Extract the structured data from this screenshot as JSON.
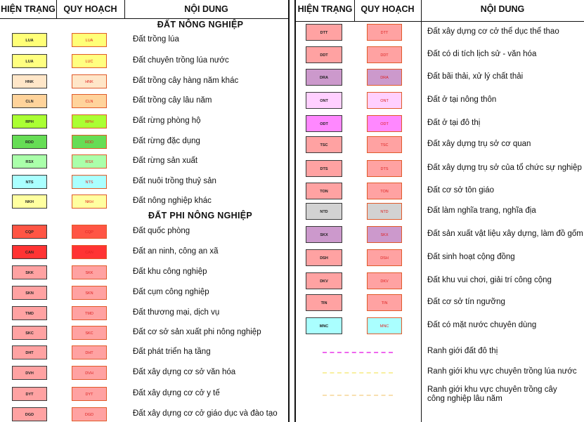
{
  "headers": {
    "current": "HIỆN TRẠNG",
    "planned": "QUY HOẠCH",
    "content": "NỘI DUNG"
  },
  "sections": {
    "agri": "ĐẤT NÔNG NGHIỆP",
    "nonagri": "ĐẤT PHI NÔNG NGHIỆP"
  },
  "left_rows": [
    {
      "code_cur": "LUA",
      "code_plan": "LUA",
      "label": "Đất trồng lúa",
      "color": "#ffff77"
    },
    {
      "code_cur": "LUA",
      "code_plan": "LUC",
      "label": "Đất chuyên trồng lúa nước",
      "color": "#ffff80"
    },
    {
      "code_cur": "HNK",
      "code_plan": "HNK",
      "label": "Đất trồng cây hàng năm khác",
      "color": "#ffe6c8"
    },
    {
      "code_cur": "CLN",
      "code_plan": "CLN",
      "label": "Đất trồng cây lâu năm",
      "color": "#ffd39b"
    },
    {
      "code_cur": "RPH",
      "code_plan": "RPH",
      "label": "Đất rừng phòng hộ",
      "color": "#aaff33"
    },
    {
      "code_cur": "RDD",
      "code_plan": "RDD",
      "label": "Đất rừng đặc dụng",
      "color": "#66dd55"
    },
    {
      "code_cur": "RSX",
      "code_plan": "RSX",
      "label": "Đất rừng sản xuất",
      "color": "#aaffaa"
    },
    {
      "code_cur": "NTS",
      "code_plan": "NTS",
      "label": "Đất nuôi trồng thuỷ sản",
      "color": "#aaffff"
    },
    {
      "code_cur": "NKH",
      "code_plan": "NKH",
      "label": "Đất nông nghiệp khác",
      "color": "#ffffa0"
    },
    {
      "code_cur": "CQP",
      "code_plan": "CQP",
      "label": "Đất quốc phòng",
      "color": "#ff5544"
    },
    {
      "code_cur": "CAN",
      "code_plan": "CAN",
      "label": "Đất an ninh, công an xã",
      "color": "#ff3333"
    },
    {
      "code_cur": "SKK",
      "code_plan": "SKK",
      "label": "Đất khu công nghiệp",
      "color": "#ffa2a2"
    },
    {
      "code_cur": "SKN",
      "code_plan": "SKN",
      "label": "Đất cụm công nghiệp",
      "color": "#ffa2a2"
    },
    {
      "code_cur": "TMD",
      "code_plan": "TMD",
      "label": "Đất thương mại, dịch vụ",
      "color": "#ffa2a2"
    },
    {
      "code_cur": "SKC",
      "code_plan": "SKC",
      "label": "Đất cơ sở sản xuất phi nông nghiệp",
      "color": "#ffa2a2"
    },
    {
      "code_cur": "DHT",
      "code_plan": "DHT",
      "label": "Đất phát triển hạ tầng",
      "color": "#ffa2a2"
    },
    {
      "code_cur": "DVH",
      "code_plan": "DVH",
      "label": "Đất xây dựng cơ sở văn hóa",
      "color": "#ffa2a2"
    },
    {
      "code_cur": "DYT",
      "code_plan": "DYT",
      "label": "Đất xây dựng cơ cở y tế",
      "color": "#ffa2a2"
    },
    {
      "code_cur": "DGD",
      "code_plan": "DGD",
      "label": "Đất xây dựng cơ cở giáo dục và đào tạo",
      "color": "#ffa2a2"
    }
  ],
  "right_rows": [
    {
      "code_cur": "DTT",
      "code_plan": "DTT",
      "label": "Đất xây dựng cơ cở thể dục thể thao",
      "color": "#ffa2a2"
    },
    {
      "code_cur": "DDT",
      "code_plan": "DDT",
      "label": "Đất có di tích lịch sử - văn hóa",
      "color": "#ffa2a2"
    },
    {
      "code_cur": "DRA",
      "code_plan": "DRA",
      "label": "Đất bãi thải, xử lý chất thải",
      "color": "#cc99cc"
    },
    {
      "code_cur": "ONT",
      "code_plan": "ONT",
      "label": "Đất ở tại nông thôn",
      "color": "#ffd0ff"
    },
    {
      "code_cur": "ODT",
      "code_plan": "ODT",
      "label": "Đất ở tại đô thị",
      "color": "#ff88ff"
    },
    {
      "code_cur": "TSC",
      "code_plan": "TSC",
      "label": "Đất xây dựng trụ sở cơ quan",
      "color": "#ffa2a2"
    },
    {
      "code_cur": "DTS",
      "code_plan": "DTS",
      "label": "Đất xây dựng trụ sở của tổ chức sự nghiệp",
      "color": "#ffa2a2"
    },
    {
      "code_cur": "TON",
      "code_plan": "TON",
      "label": "Đất cơ sở tôn giáo",
      "color": "#ffa2a2"
    },
    {
      "code_cur": "NTD",
      "code_plan": "NTD",
      "label": "Đất làm nghĩa trang, nghĩa địa",
      "color": "#d2d2d2"
    },
    {
      "code_cur": "SKX",
      "code_plan": "SKX",
      "label": "Đất sản xuất vật liệu xây dựng, làm đồ gốm",
      "color": "#cc99cc"
    },
    {
      "code_cur": "DSH",
      "code_plan": "DSH",
      "label": "Đất sinh hoạt cộng đồng",
      "color": "#ffa2a2"
    },
    {
      "code_cur": "DKV",
      "code_plan": "DKV",
      "label": "Đất khu vui chơi, giải trí công cộng",
      "color": "#ffa2a2"
    },
    {
      "code_cur": "TIN",
      "code_plan": "TIN",
      "label": "Đất cơ sở tín ngưỡng",
      "color": "#ffa2a2"
    },
    {
      "code_cur": "MNC",
      "code_plan": "MNC",
      "label": "Đất có mặt nước chuyên dùng",
      "color": "#aaffff"
    }
  ],
  "boundaries": [
    {
      "label": "Ranh giới đất đô thị",
      "color": "#ee66ee"
    },
    {
      "label": "Ranh giới khu vực chuyên trồng lúa nước",
      "color": "#f8f0a0"
    },
    {
      "label": "Ranh giới khu vực chuyên trồng cây công nghiệp lâu năm",
      "color": "#f8e0b0"
    }
  ]
}
